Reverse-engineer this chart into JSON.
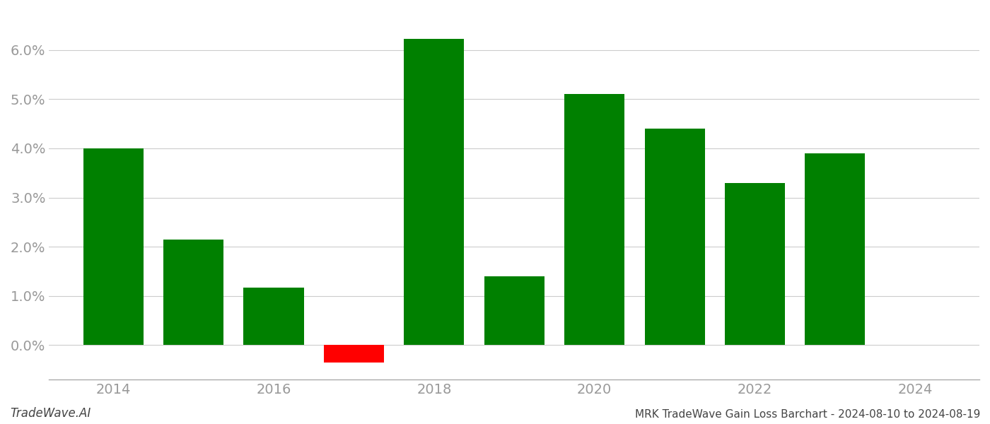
{
  "years": [
    2014,
    2015,
    2016,
    2017,
    2018,
    2019,
    2020,
    2021,
    2022,
    2023
  ],
  "values": [
    0.04,
    0.0215,
    0.0117,
    -0.0035,
    0.0622,
    0.014,
    0.051,
    0.044,
    0.033,
    0.039
  ],
  "bar_colors": [
    "#008000",
    "#008000",
    "#008000",
    "#ff0000",
    "#008000",
    "#008000",
    "#008000",
    "#008000",
    "#008000",
    "#008000"
  ],
  "title": "MRK TradeWave Gain Loss Barchart - 2024-08-10 to 2024-08-19",
  "bottom_left_text": "TradeWave.AI",
  "background_color": "#ffffff",
  "grid_color": "#cccccc",
  "axis_label_color": "#999999",
  "ylim": [
    -0.007,
    0.068
  ],
  "yticks": [
    0.0,
    0.01,
    0.02,
    0.03,
    0.04,
    0.05,
    0.06
  ],
  "xticks": [
    2014,
    2016,
    2018,
    2020,
    2022,
    2024
  ],
  "xlim": [
    2013.2,
    2024.8
  ],
  "bar_width": 0.75
}
